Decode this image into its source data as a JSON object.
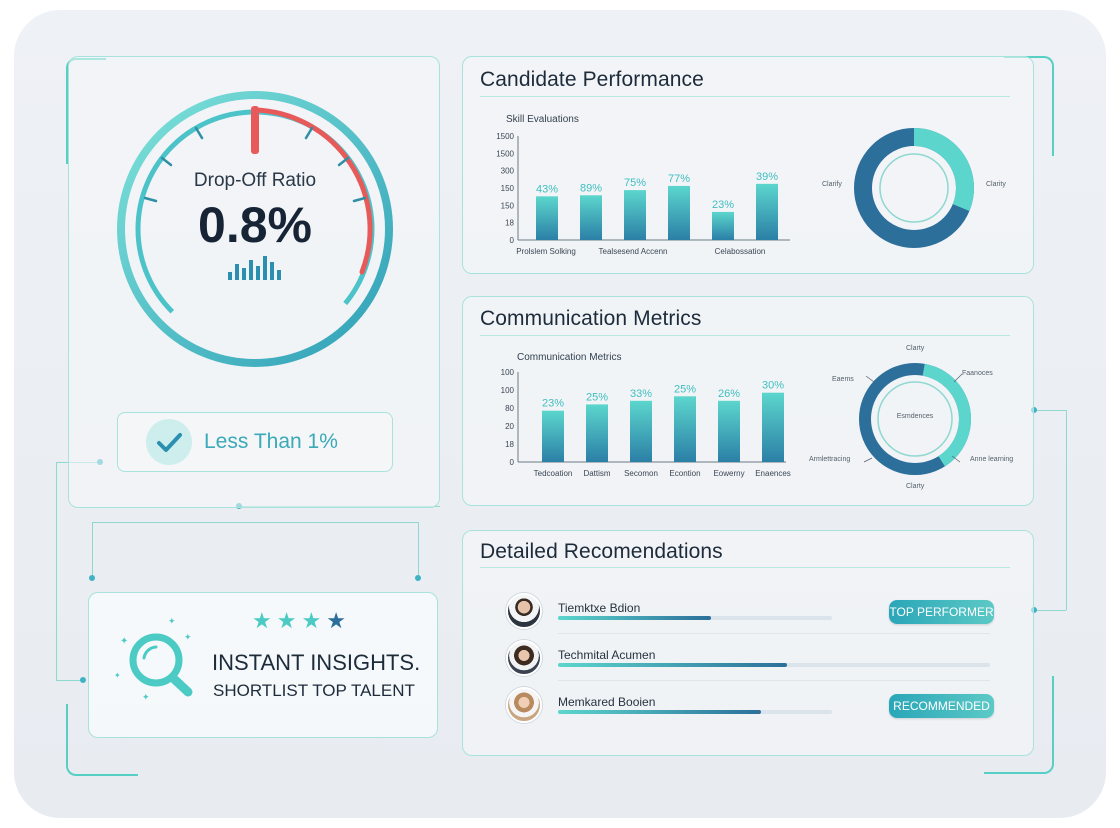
{
  "gauge": {
    "title": "Drop-Off Ratio",
    "value": "0.8%",
    "level": 0.27
  },
  "status_pill": {
    "label": "Less Than 1%"
  },
  "insights": {
    "headline": "INSTANT INSIGHTS.",
    "subline": "SHORTLIST TOP TALENT",
    "stars": 4
  },
  "candidate_performance": {
    "title": "Candidate Performance",
    "chart_data": {
      "type": "bar",
      "title": "Skill Evaluations",
      "y_ticks": [
        "1500",
        "1500",
        "300",
        "150",
        "150",
        "18",
        "0"
      ],
      "x_labels": [
        "Prolslem Solking",
        "Tealsesend Accenn",
        "Celabossation"
      ],
      "values": [
        43,
        89,
        75,
        77,
        23,
        39
      ],
      "data_labels": [
        "43%",
        "89%",
        "75%",
        "77%",
        "23%",
        "39%"
      ],
      "relative_heights": [
        0.42,
        0.43,
        0.48,
        0.52,
        0.27,
        0.54
      ]
    },
    "donut": {
      "labels": [
        "Clarify",
        "Clarity"
      ],
      "share": 0.72,
      "colors": [
        "#2b6f9a",
        "#5cd6cd"
      ]
    }
  },
  "communication_metrics": {
    "title": "Communication Metrics",
    "chart_data": {
      "type": "bar",
      "title": "Communication Metrics",
      "y_ticks": [
        "100",
        "100",
        "80",
        "20",
        "18",
        "0"
      ],
      "categories": [
        "Tedcoation",
        "Dattism",
        "Secomon",
        "Econtion",
        "Eowerny",
        "Enaences"
      ],
      "values": [
        23,
        25,
        33,
        25,
        26,
        30
      ],
      "data_labels": [
        "23%",
        "25%",
        "33%",
        "25%",
        "26%",
        "30%"
      ],
      "relative_heights": [
        0.57,
        0.64,
        0.68,
        0.73,
        0.68,
        0.77
      ]
    },
    "donut": {
      "center": "Esmdences",
      "labels": [
        "Clarty",
        "Faanoces",
        "Anne learning",
        "Clarty",
        "Armlettracing",
        "Eaems"
      ],
      "share": 0.55,
      "colors": [
        "#2b6f9a",
        "#5cd6cd"
      ]
    }
  },
  "recommendations": {
    "title": "Detailed Recomendations",
    "items": [
      {
        "name": "Tiemktxe Bdion",
        "progress": 0.56,
        "badge": "TOP PERFORMER",
        "avatar": "avatar-1"
      },
      {
        "name": "Techmital Acumen",
        "progress": 0.53,
        "badge": "",
        "avatar": "avatar-2"
      },
      {
        "name": "Memkared Booien",
        "progress": 0.74,
        "badge": "RECOMMENDED",
        "avatar": "avatar-3"
      }
    ]
  },
  "colors": {
    "teal": "#5cd6cd",
    "deep_blue": "#2b6f9a",
    "gauge_red": "#e85a5a",
    "text_dark": "#1d2b3a"
  }
}
